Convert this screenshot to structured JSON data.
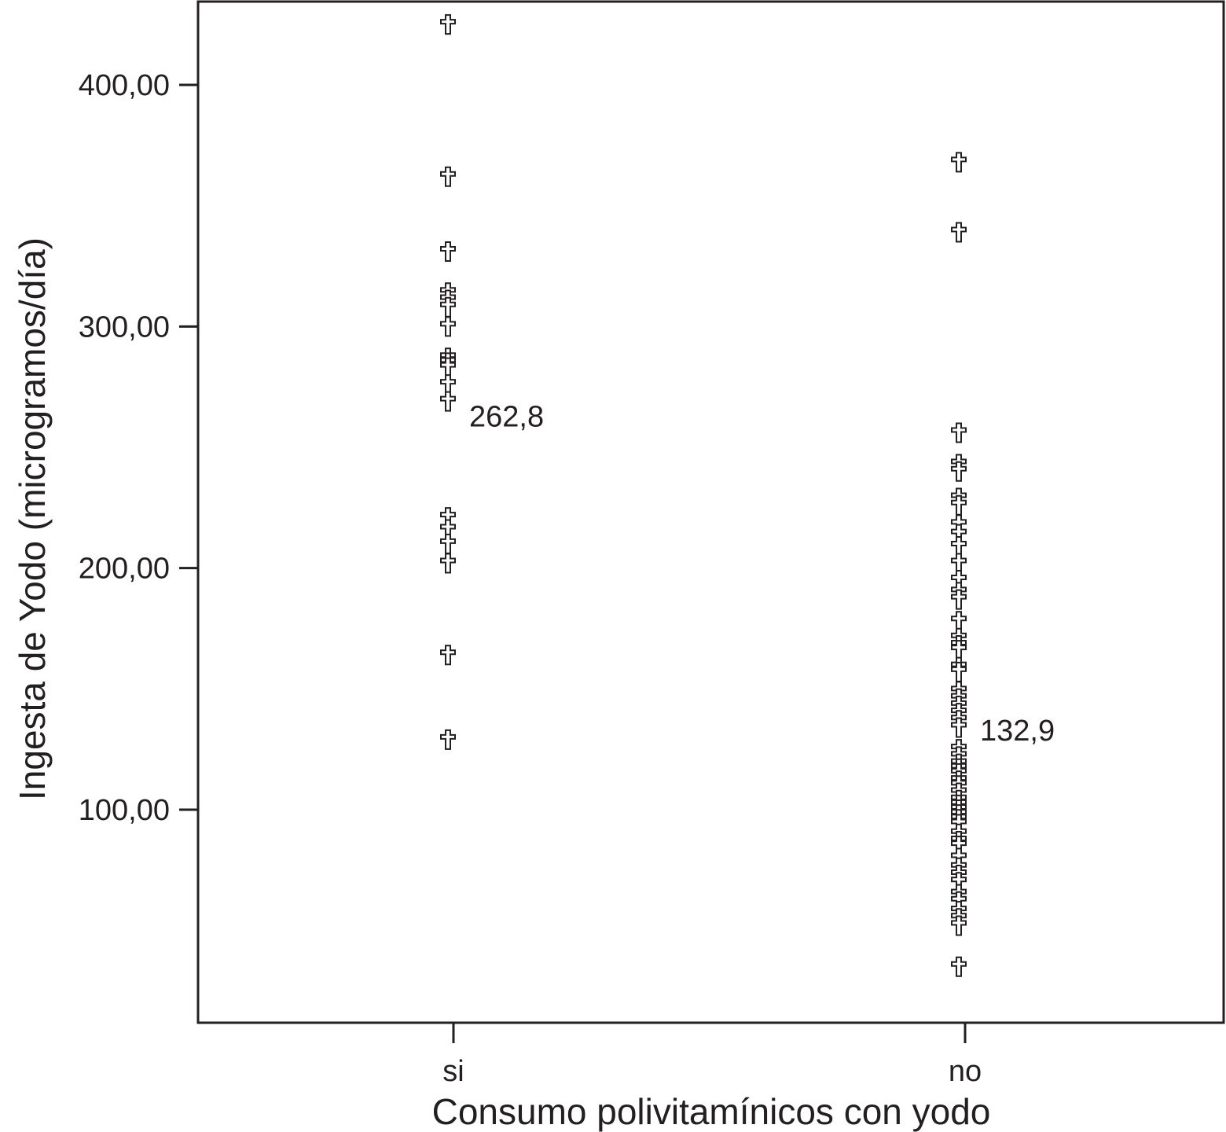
{
  "chart_data": {
    "type": "scatter",
    "xlabel": "Consumo polivitamínicos con yodo",
    "ylabel": "Ingesta de Yodo (microgramos/día)",
    "ylim": [
      12,
      435
    ],
    "yticks": [
      {
        "value": 100,
        "label": "100,00"
      },
      {
        "value": 200,
        "label": "200,00"
      },
      {
        "value": 300,
        "label": "300,00"
      },
      {
        "value": 400,
        "label": "400,00"
      }
    ],
    "categories": [
      "si",
      "no"
    ],
    "marker": "cross",
    "colors": {
      "axis": "#231f20",
      "marker_stroke": "#231f20",
      "marker_fill": "#ffffff",
      "background": "#ffffff"
    },
    "series": [
      {
        "category": "si",
        "values": [
          425,
          362,
          331,
          314,
          311,
          308,
          300,
          287,
          285,
          283,
          276,
          269,
          221,
          216,
          210,
          202,
          164,
          129
        ]
      },
      {
        "category": "no",
        "values": [
          368,
          339,
          256,
          243,
          240,
          229,
          226,
          218,
          214,
          209,
          202,
          195,
          190,
          187,
          178,
          171,
          168,
          166,
          159,
          157,
          149,
          146,
          143,
          140,
          137,
          134,
          125,
          122,
          119,
          117,
          115,
          112,
          110,
          107,
          104,
          102,
          100,
          98,
          96,
          94,
          90,
          87,
          85,
          80,
          76,
          73,
          70,
          65,
          62,
          58,
          55,
          52,
          35
        ]
      }
    ],
    "annotations": [
      {
        "category": "si",
        "value": 262.8,
        "label": "262,8"
      },
      {
        "category": "no",
        "value": 132.9,
        "label": "132,9"
      }
    ]
  }
}
